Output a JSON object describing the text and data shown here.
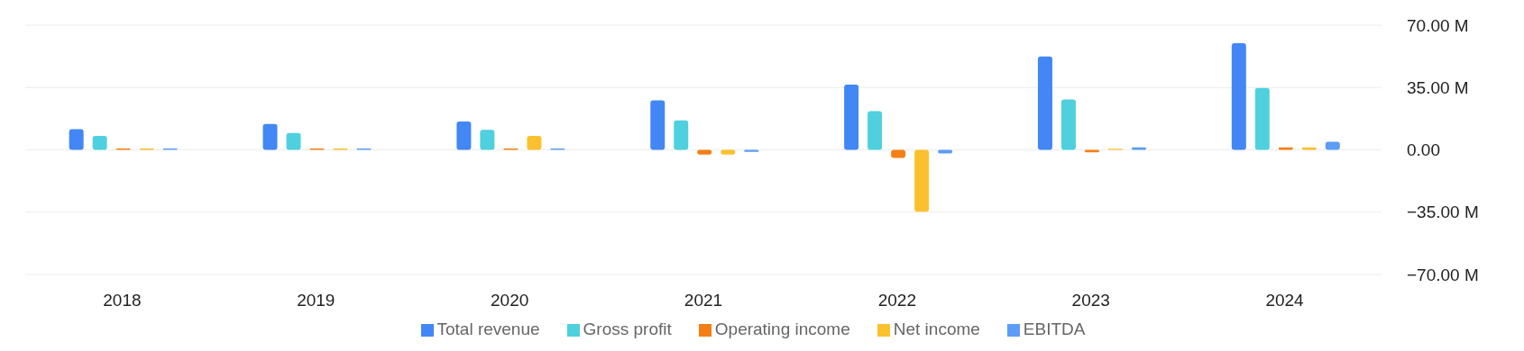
{
  "chart_data": {
    "type": "bar",
    "categories": [
      "2018",
      "2019",
      "2020",
      "2021",
      "2022",
      "2023",
      "2024"
    ],
    "series": [
      {
        "name": "Total revenue",
        "color": "#4287f5",
        "values": [
          11.6,
          14.5,
          15.9,
          27.8,
          36.7,
          52.4,
          59.9
        ]
      },
      {
        "name": "Gross profit",
        "color": "#4fd0df",
        "values": [
          7.8,
          9.5,
          11.3,
          16.5,
          21.7,
          28.3,
          34.7
        ]
      },
      {
        "name": "Operating income",
        "color": "#f57f17",
        "values": [
          0.8,
          0.8,
          0.8,
          -2.6,
          -4.6,
          -1.4,
          1.4
        ]
      },
      {
        "name": "Net income",
        "color": "#fbc02d",
        "values": [
          0.8,
          0.8,
          7.8,
          -2.6,
          -34.7,
          0.6,
          1.4
        ]
      },
      {
        "name": "EBITDA",
        "color": "#5c9cf5",
        "values": [
          0.8,
          0.8,
          0.8,
          -1.2,
          -2.0,
          1.4,
          4.6
        ]
      }
    ],
    "ylim": [
      -70,
      70
    ],
    "yticks": [
      {
        "value": -70,
        "label": "−70.00 M"
      },
      {
        "value": -35,
        "label": "−35.00 M"
      },
      {
        "value": 0,
        "label": "0.00"
      },
      {
        "value": 35,
        "label": "35.00 M"
      },
      {
        "value": 70,
        "label": "70.00 M"
      }
    ],
    "grid": "y",
    "legend": "bottom"
  }
}
